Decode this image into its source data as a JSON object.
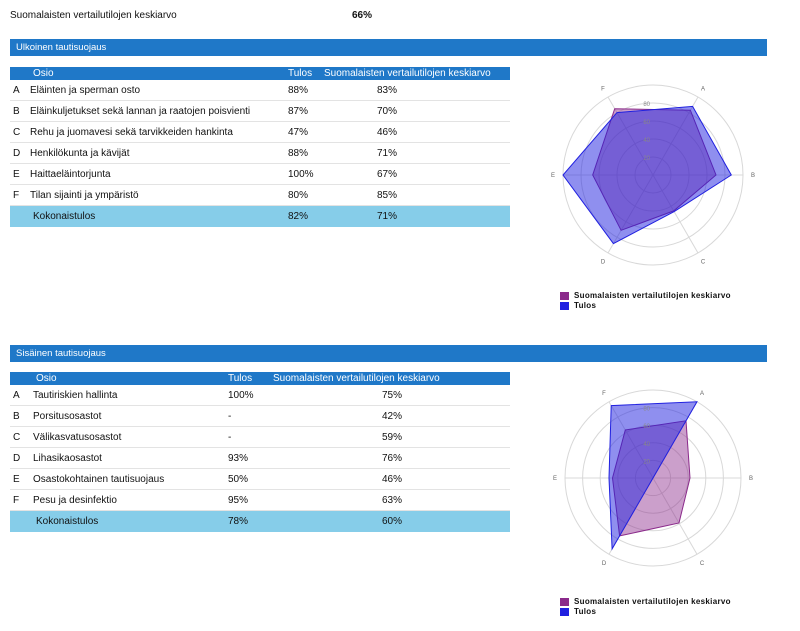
{
  "summary": {
    "label": "Suomalaisten vertailutilojen keskiarvo",
    "value": "66%"
  },
  "colors": {
    "header_band": "#1f78c8",
    "total_row": "#86cde9",
    "series_benchmark": "#8b2a8b",
    "series_result": "#2020e0"
  },
  "sections": [
    {
      "title": "Ulkoinen tautisuojaus",
      "columns": [
        "Osio",
        "Tulos",
        "Suomalaisten vertailutilojen keskiarvo"
      ],
      "rows": [
        {
          "letter": "A",
          "name": "Eläinten ja sperman osto",
          "result": "88%",
          "benchmark": "83%"
        },
        {
          "letter": "B",
          "name": "Eläinkuljetukset sekä lannan ja raatojen poisvienti",
          "result": "87%",
          "benchmark": "70%"
        },
        {
          "letter": "C",
          "name": "Rehu ja juomavesi sekä tarvikkeiden hankinta",
          "result": "47%",
          "benchmark": "46%"
        },
        {
          "letter": "D",
          "name": "Henkilökunta ja kävijät",
          "result": "88%",
          "benchmark": "71%"
        },
        {
          "letter": "E",
          "name": "Haittaeläintorjunta",
          "result": "100%",
          "benchmark": "67%"
        },
        {
          "letter": "F",
          "name": "Tilan sijainti ja ympäristö",
          "result": "80%",
          "benchmark": "85%"
        }
      ],
      "total": {
        "name": "Kokonaistulos",
        "result": "82%",
        "benchmark": "71%"
      }
    },
    {
      "title": "Sisäinen tautisuojaus",
      "columns": [
        "Osio",
        "Tulos",
        "Suomalaisten vertailutilojen keskiarvo"
      ],
      "rows": [
        {
          "letter": "A",
          "name": "Tautiriskien hallinta",
          "result": "100%",
          "benchmark": "75%"
        },
        {
          "letter": "B",
          "name": "Porsitusosastot",
          "result": "-",
          "benchmark": "42%"
        },
        {
          "letter": "C",
          "name": "Välikasvatusosastot",
          "result": "-",
          "benchmark": "59%"
        },
        {
          "letter": "D",
          "name": "Lihasikaosastot",
          "result": "93%",
          "benchmark": "76%"
        },
        {
          "letter": "E",
          "name": "Osastokohtainen tautisuojaus",
          "result": "50%",
          "benchmark": "46%"
        },
        {
          "letter": "F",
          "name": "Pesu ja desinfektio",
          "result": "95%",
          "benchmark": "63%"
        }
      ],
      "total": {
        "name": "Kokonaistulos",
        "result": "78%",
        "benchmark": "60%"
      }
    }
  ],
  "chart_data": [
    {
      "type": "radar",
      "axes": [
        "A",
        "B",
        "C",
        "D",
        "E",
        "F"
      ],
      "rlim": [
        0,
        100
      ],
      "ticks": [
        "20",
        "40",
        "60",
        "80"
      ],
      "series": [
        {
          "name": "Suomalaisten vertailutilojen keskiarvo",
          "values": [
            83,
            70,
            46,
            71,
            67,
            85
          ]
        },
        {
          "name": "Tulos",
          "values": [
            88,
            87,
            47,
            88,
            100,
            80
          ]
        }
      ],
      "legend": "bottom-left"
    },
    {
      "type": "radar",
      "axes": [
        "A",
        "B",
        "C",
        "D",
        "E",
        "F"
      ],
      "rlim": [
        0,
        100
      ],
      "ticks": [
        "20",
        "40",
        "60",
        "80"
      ],
      "series": [
        {
          "name": "Suomalaisten vertailutilojen keskiarvo",
          "values": [
            75,
            42,
            59,
            76,
            46,
            63
          ]
        },
        {
          "name": "Tulos",
          "values": [
            100,
            0,
            0,
            93,
            50,
            95
          ]
        }
      ],
      "legend": "bottom-left"
    }
  ]
}
